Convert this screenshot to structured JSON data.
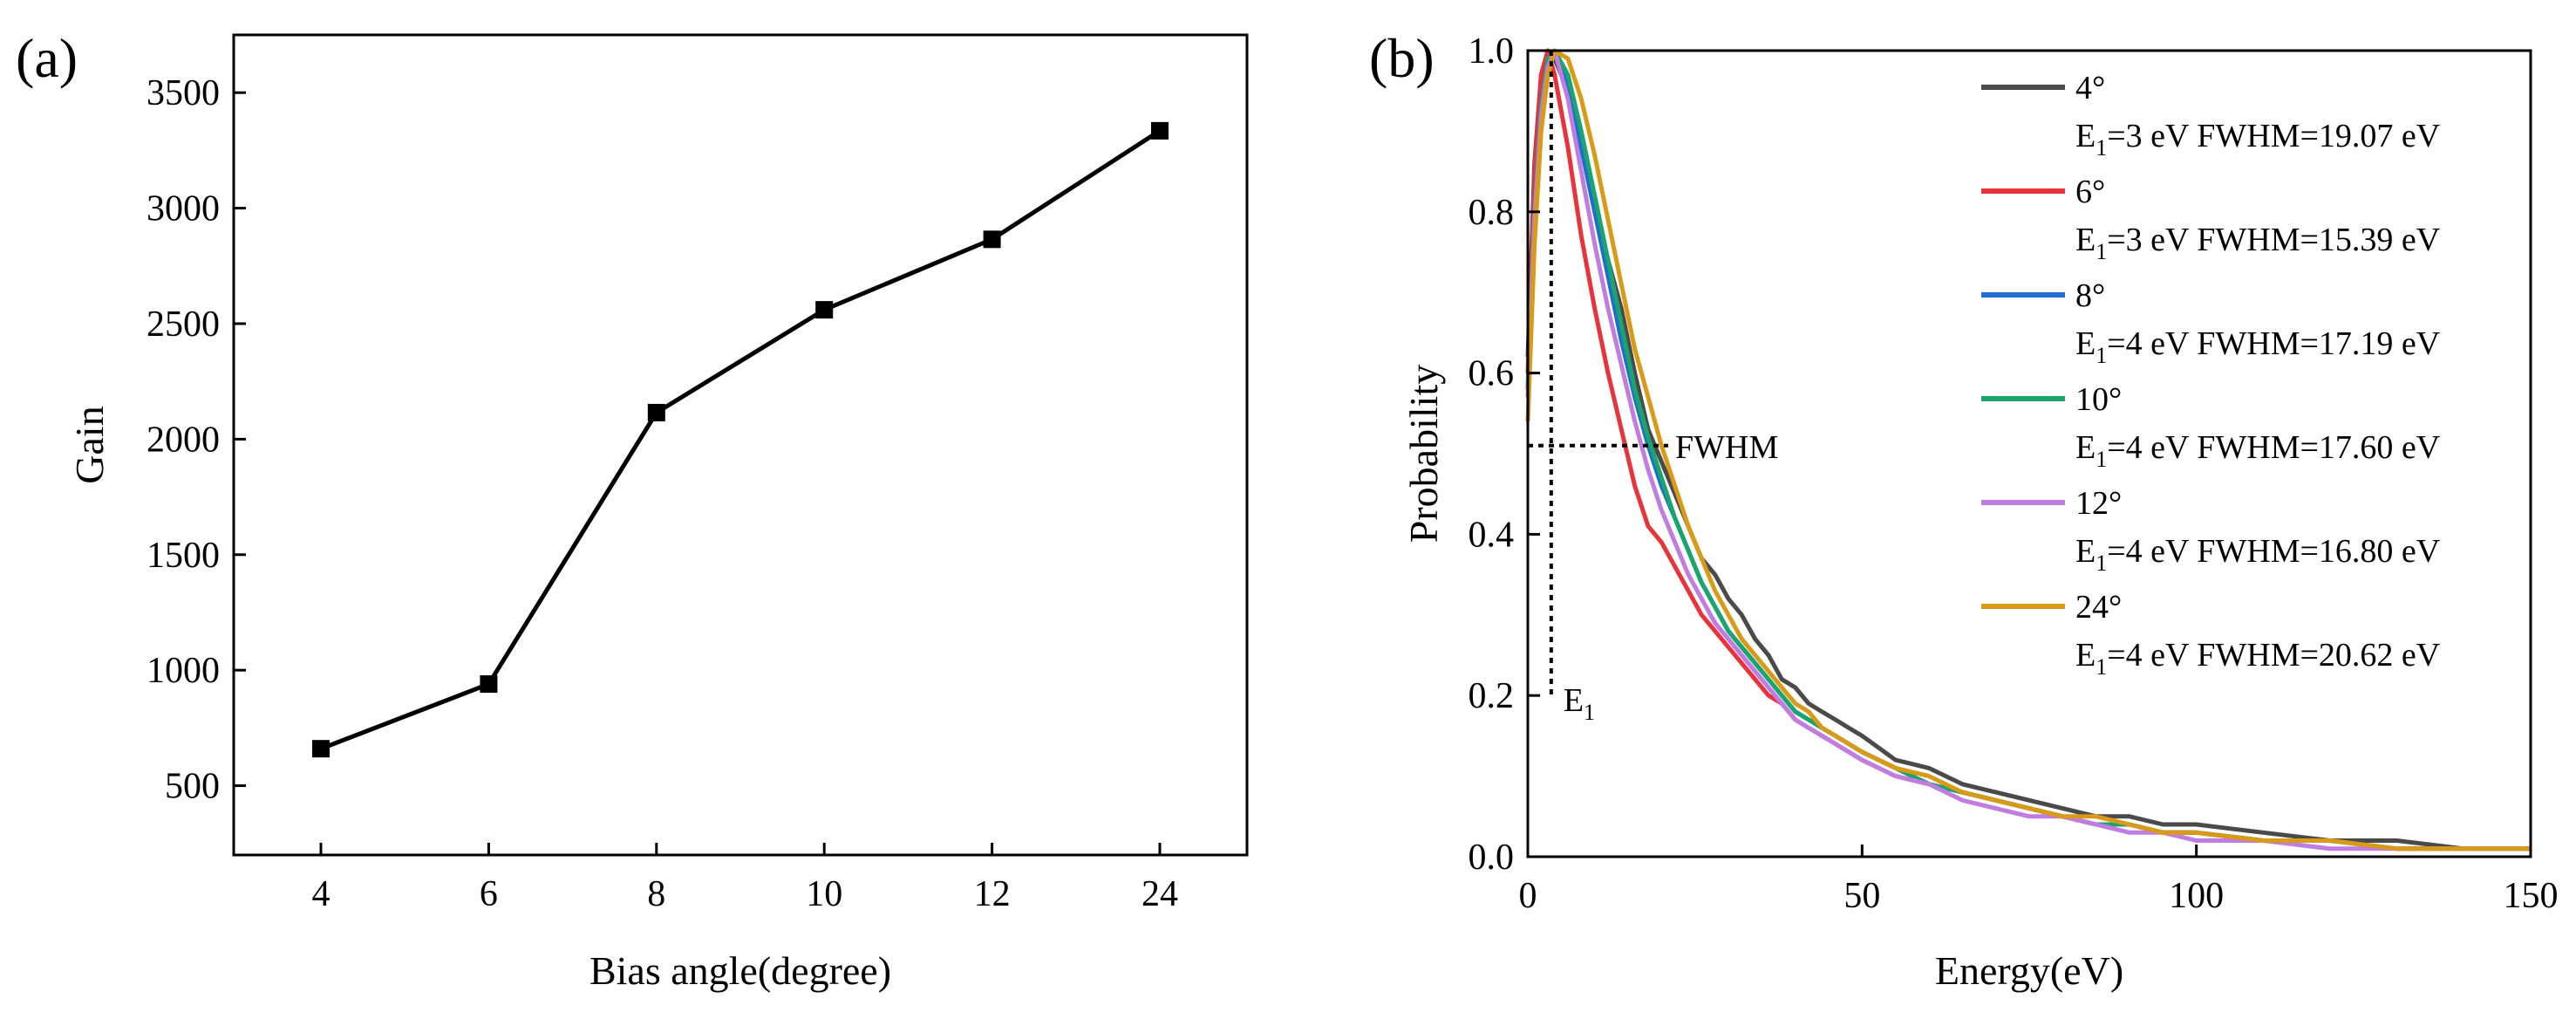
{
  "chart_data": [
    {
      "panel": "(a)",
      "type": "line",
      "xlabel": "Bias angle(degree)",
      "ylabel": "Gain",
      "categories": [
        "4",
        "6",
        "8",
        "10",
        "12",
        "24"
      ],
      "values": [
        660,
        940,
        2115,
        2560,
        2865,
        3335
      ],
      "ylim": [
        200,
        3750
      ],
      "yticks": [
        500,
        1000,
        1500,
        2000,
        2500,
        3000,
        3500
      ],
      "marker": "square",
      "color": "#000000",
      "grid": false
    },
    {
      "panel": "(b)",
      "type": "line",
      "xlabel": "Energy(eV)",
      "ylabel": "Probability",
      "xlim": [
        0,
        150
      ],
      "ylim": [
        0,
        1.0
      ],
      "xticks": [
        0,
        50,
        100,
        150
      ],
      "yticks": [
        0.0,
        0.2,
        0.4,
        0.6,
        0.8,
        1.0
      ],
      "ytick_labels": [
        "0.0",
        "0.2",
        "0.4",
        "0.6",
        "0.8",
        "1.0"
      ],
      "grid": false,
      "legend_position": "top-right",
      "series": [
        {
          "name": "4°",
          "detail": "E1=3 eV  FWHM=19.07 eV",
          "color": "#4a4a4a",
          "x": [
            0,
            1,
            2,
            3,
            4,
            6,
            8,
            10,
            12,
            14,
            16,
            18,
            20,
            22,
            24,
            26,
            28,
            30,
            32,
            34,
            36,
            38,
            40,
            42,
            44,
            46,
            48,
            50,
            55,
            60,
            65,
            70,
            75,
            80,
            85,
            90,
            95,
            100,
            110,
            120,
            130,
            140,
            150
          ],
          "y": [
            0.62,
            0.86,
            0.97,
            1.0,
            0.99,
            0.95,
            0.88,
            0.8,
            0.74,
            0.68,
            0.6,
            0.53,
            0.49,
            0.45,
            0.41,
            0.37,
            0.35,
            0.32,
            0.3,
            0.27,
            0.25,
            0.22,
            0.21,
            0.19,
            0.18,
            0.17,
            0.16,
            0.15,
            0.12,
            0.11,
            0.09,
            0.08,
            0.07,
            0.06,
            0.05,
            0.05,
            0.04,
            0.04,
            0.03,
            0.02,
            0.02,
            0.01,
            0.01
          ]
        },
        {
          "name": "6°",
          "detail": "E1=3 eV  FWHM=15.39 eV",
          "color": "#e8333a",
          "x": [
            0,
            1,
            2,
            3,
            4,
            6,
            8,
            10,
            12,
            14,
            16,
            18,
            20,
            22,
            24,
            26,
            28,
            30,
            32,
            34,
            36,
            38,
            40,
            42,
            44,
            46,
            48,
            50,
            55,
            60,
            65,
            70,
            75,
            80,
            85,
            90,
            95,
            100,
            110,
            120,
            130,
            140,
            150
          ],
          "y": [
            0.6,
            0.85,
            0.97,
            1.0,
            0.97,
            0.88,
            0.77,
            0.68,
            0.6,
            0.53,
            0.46,
            0.41,
            0.39,
            0.36,
            0.33,
            0.3,
            0.28,
            0.26,
            0.24,
            0.22,
            0.2,
            0.19,
            0.17,
            0.16,
            0.15,
            0.14,
            0.13,
            0.12,
            0.1,
            0.09,
            0.08,
            0.07,
            0.06,
            0.05,
            0.04,
            0.04,
            0.03,
            0.03,
            0.02,
            0.02,
            0.01,
            0.01,
            0.01
          ]
        },
        {
          "name": "8°",
          "detail": "E1=4 eV  FWHM=17.19 eV",
          "color": "#1c6fd1",
          "x": [
            0,
            1,
            2,
            3,
            4,
            6,
            8,
            10,
            12,
            14,
            16,
            18,
            20,
            22,
            24,
            26,
            28,
            30,
            32,
            34,
            36,
            38,
            40,
            42,
            44,
            46,
            48,
            50,
            55,
            60,
            65,
            70,
            75,
            80,
            85,
            90,
            95,
            100,
            110,
            120,
            130,
            140,
            150
          ],
          "y": [
            0.58,
            0.8,
            0.93,
            0.99,
            1.0,
            0.96,
            0.88,
            0.8,
            0.72,
            0.64,
            0.57,
            0.51,
            0.46,
            0.42,
            0.38,
            0.34,
            0.31,
            0.28,
            0.26,
            0.24,
            0.22,
            0.2,
            0.18,
            0.17,
            0.16,
            0.15,
            0.14,
            0.13,
            0.11,
            0.09,
            0.08,
            0.07,
            0.06,
            0.05,
            0.04,
            0.04,
            0.03,
            0.03,
            0.02,
            0.02,
            0.01,
            0.01,
            0.01
          ]
        },
        {
          "name": "10°",
          "detail": "E1=4 eV  FWHM=17.60 eV",
          "color": "#1aa56e",
          "x": [
            0,
            1,
            2,
            3,
            4,
            6,
            8,
            10,
            12,
            14,
            16,
            18,
            20,
            22,
            24,
            26,
            28,
            30,
            32,
            34,
            36,
            38,
            40,
            42,
            44,
            46,
            48,
            50,
            55,
            60,
            65,
            70,
            75,
            80,
            85,
            90,
            95,
            100,
            110,
            120,
            130,
            140,
            150
          ],
          "y": [
            0.58,
            0.8,
            0.93,
            0.99,
            1.0,
            0.97,
            0.9,
            0.82,
            0.74,
            0.66,
            0.58,
            0.52,
            0.47,
            0.42,
            0.38,
            0.34,
            0.31,
            0.28,
            0.26,
            0.24,
            0.22,
            0.2,
            0.18,
            0.17,
            0.16,
            0.15,
            0.14,
            0.13,
            0.11,
            0.09,
            0.08,
            0.07,
            0.06,
            0.05,
            0.04,
            0.04,
            0.03,
            0.03,
            0.02,
            0.02,
            0.01,
            0.01,
            0.01
          ]
        },
        {
          "name": "12°",
          "detail": "E1=4 eV  FWHM=16.80 eV",
          "color": "#c07ce0",
          "x": [
            0,
            1,
            2,
            3,
            4,
            6,
            8,
            10,
            12,
            14,
            16,
            18,
            20,
            22,
            24,
            26,
            28,
            30,
            32,
            34,
            36,
            38,
            40,
            42,
            44,
            46,
            48,
            50,
            55,
            60,
            65,
            70,
            75,
            80,
            85,
            90,
            95,
            100,
            110,
            120,
            130,
            140,
            150
          ],
          "y": [
            0.57,
            0.79,
            0.92,
            0.98,
            1.0,
            0.94,
            0.85,
            0.76,
            0.68,
            0.61,
            0.54,
            0.48,
            0.43,
            0.39,
            0.35,
            0.32,
            0.29,
            0.27,
            0.25,
            0.23,
            0.21,
            0.19,
            0.17,
            0.16,
            0.15,
            0.14,
            0.13,
            0.12,
            0.1,
            0.09,
            0.07,
            0.06,
            0.05,
            0.05,
            0.04,
            0.03,
            0.03,
            0.02,
            0.02,
            0.01,
            0.01,
            0.01,
            0.01
          ]
        },
        {
          "name": "24°",
          "detail": "E1=4 eV  FWHM=20.62 eV",
          "color": "#d99a17",
          "x": [
            0,
            1,
            2,
            3,
            4,
            6,
            8,
            10,
            12,
            14,
            16,
            18,
            20,
            22,
            24,
            26,
            28,
            30,
            32,
            34,
            36,
            38,
            40,
            42,
            44,
            46,
            48,
            50,
            55,
            60,
            65,
            70,
            75,
            80,
            85,
            90,
            95,
            100,
            110,
            120,
            130,
            140,
            150
          ],
          "y": [
            0.54,
            0.76,
            0.9,
            0.97,
            1.0,
            0.99,
            0.94,
            0.87,
            0.79,
            0.71,
            0.63,
            0.57,
            0.51,
            0.46,
            0.41,
            0.37,
            0.33,
            0.3,
            0.27,
            0.25,
            0.23,
            0.21,
            0.19,
            0.18,
            0.16,
            0.15,
            0.14,
            0.13,
            0.11,
            0.1,
            0.08,
            0.07,
            0.06,
            0.05,
            0.05,
            0.04,
            0.03,
            0.03,
            0.02,
            0.02,
            0.01,
            0.01,
            0.01
          ]
        }
      ],
      "annotations": {
        "fwhm_label": "FWHM",
        "fwhm_level": 0.51,
        "fwhm_x_end": 21,
        "e1_label_main": "E",
        "e1_label_sub": "1",
        "e1_x": 3.5,
        "e1_y_bottom": 0.2
      }
    }
  ]
}
